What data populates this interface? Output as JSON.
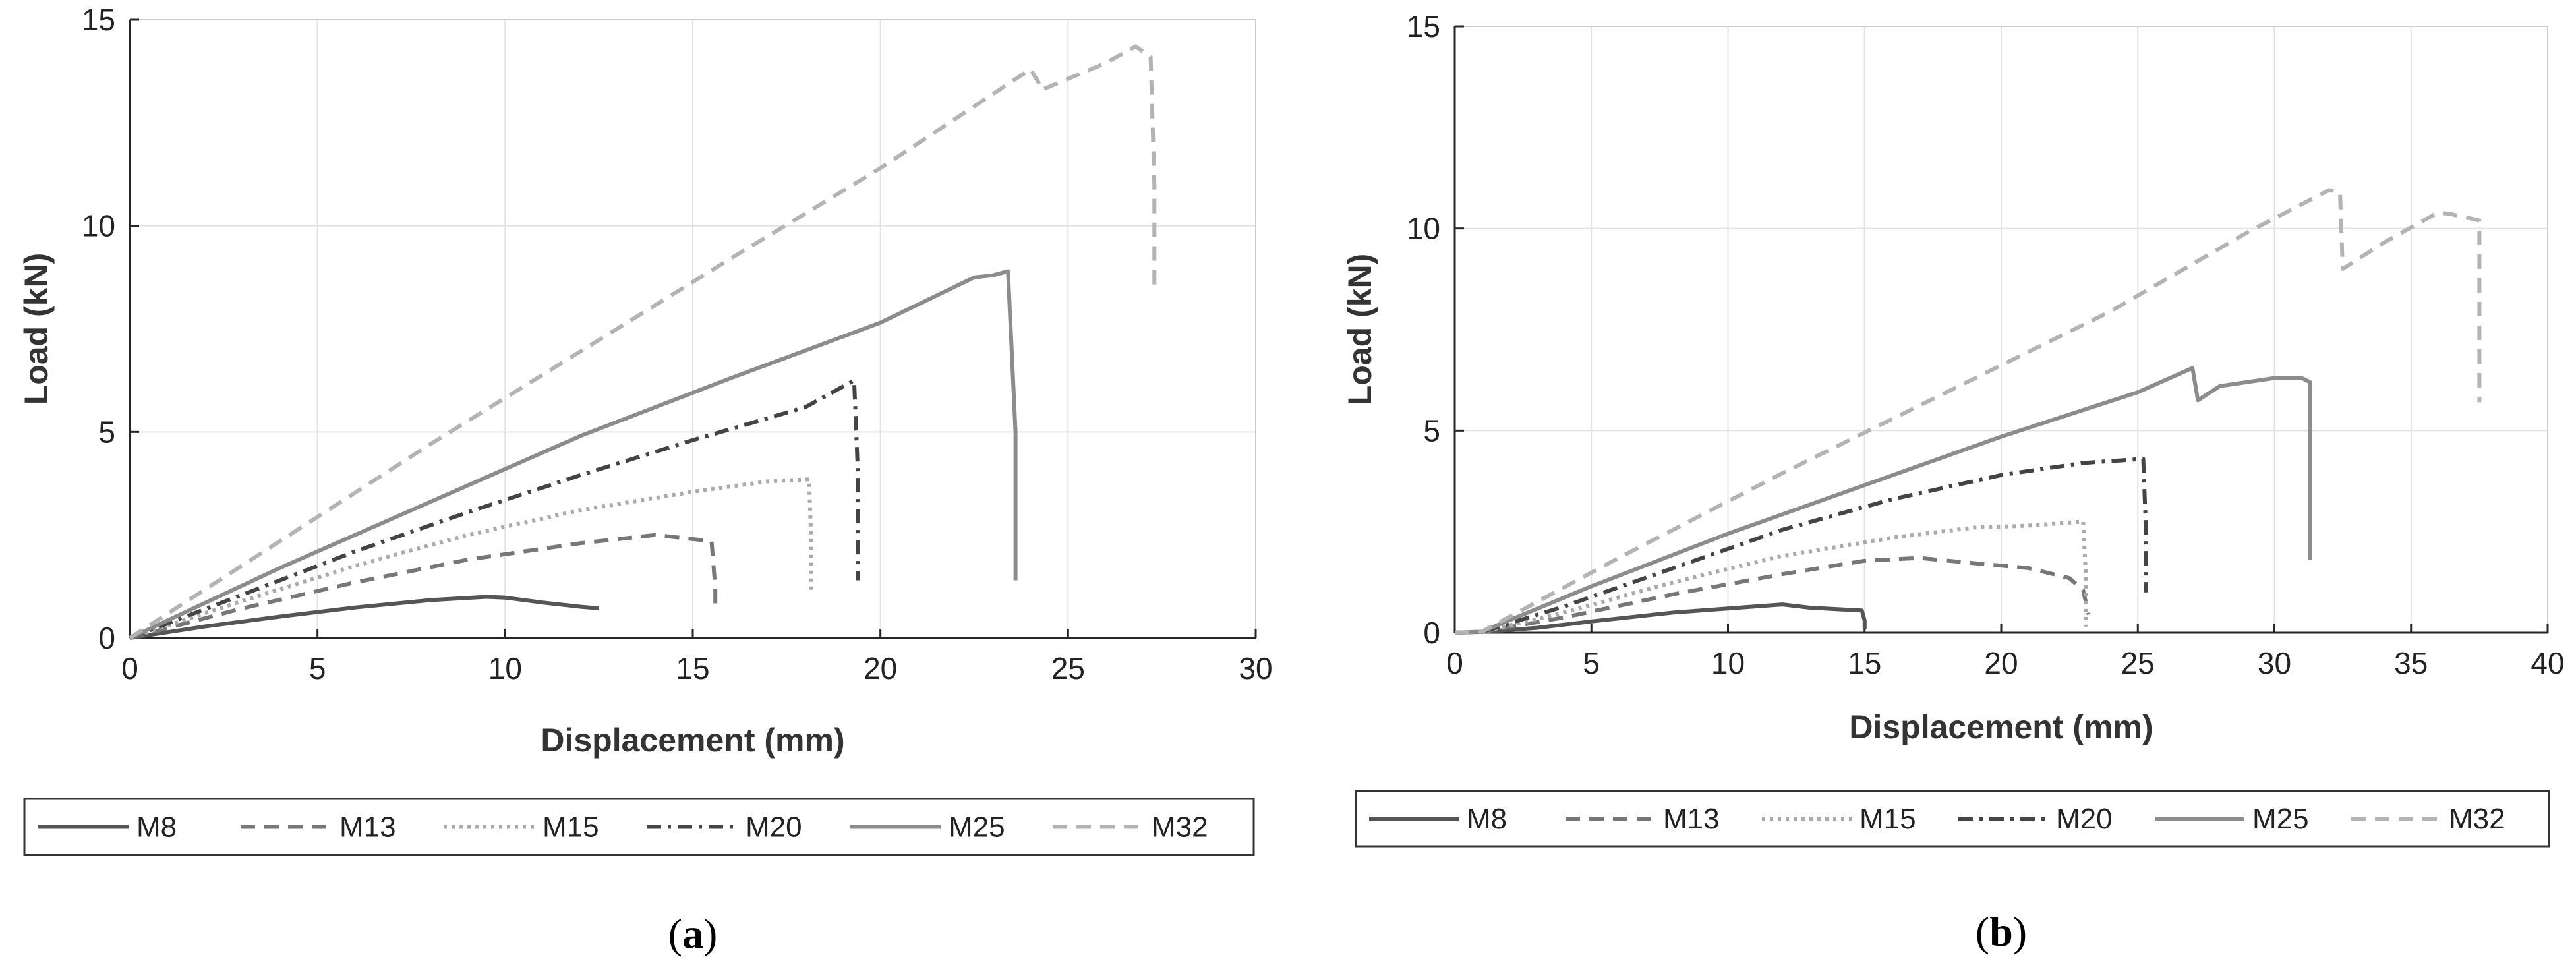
{
  "chart_data": [
    {
      "type": "line",
      "panel_label": "a",
      "xlabel": "Displacement (mm)",
      "ylabel": "Load (kN)",
      "xlim": [
        0,
        30
      ],
      "ylim": [
        0,
        15
      ],
      "xticks": [
        "0",
        "5",
        "10",
        "15",
        "20",
        "25",
        "30"
      ],
      "yticks": [
        "0",
        "5",
        "10",
        "15"
      ],
      "grid": true,
      "legend_position": "bottom",
      "series": [
        {
          "name": "M8",
          "style": "solid",
          "color": "#555555",
          "x": [
            0,
            2,
            4,
            6,
            8,
            9.5,
            10,
            11,
            12,
            12.5
          ],
          "y": [
            0,
            0.28,
            0.52,
            0.74,
            0.92,
            1.0,
            0.98,
            0.86,
            0.76,
            0.72
          ]
        },
        {
          "name": "M13",
          "style": "dashed",
          "color": "#777777",
          "x": [
            0,
            3,
            6,
            9,
            12,
            14,
            15.5,
            15.6,
            15.6
          ],
          "y": [
            0,
            0.72,
            1.35,
            1.9,
            2.3,
            2.5,
            2.35,
            1.2,
            0.65
          ]
        },
        {
          "name": "M15",
          "style": "dotted",
          "color": "#aaaaaa",
          "x": [
            0,
            3,
            6,
            9,
            12,
            15,
            17,
            18.1,
            18.15,
            18.15
          ],
          "y": [
            0,
            0.9,
            1.75,
            2.5,
            3.1,
            3.55,
            3.8,
            3.85,
            2.5,
            1.1
          ]
        },
        {
          "name": "M20",
          "style": "dashdot",
          "color": "#444444",
          "x": [
            0,
            3,
            6,
            9,
            12,
            15,
            18,
            19.3,
            19.4,
            19.4
          ],
          "y": [
            0,
            1.05,
            2.1,
            3.05,
            3.95,
            4.8,
            5.6,
            6.25,
            4.0,
            1.4
          ]
        },
        {
          "name": "M25",
          "style": "solid",
          "color": "#8c8c8c",
          "x": [
            0,
            4,
            8,
            12,
            16,
            20,
            22.5,
            23,
            23.4,
            23.6,
            23.6
          ],
          "y": [
            0,
            1.7,
            3.3,
            4.9,
            6.3,
            7.65,
            8.75,
            8.8,
            8.9,
            5.0,
            1.4
          ]
        },
        {
          "name": "M32",
          "style": "dashed",
          "color": "#b3b3b3",
          "x": [
            0,
            4,
            8,
            12,
            16,
            20,
            24,
            24.2,
            24.3,
            26,
            26.8,
            27.2,
            27.3,
            27.3
          ],
          "y": [
            0,
            2.35,
            4.7,
            6.95,
            9.2,
            11.4,
            13.8,
            13.5,
            13.3,
            13.95,
            14.35,
            14.1,
            11.0,
            8.4
          ]
        }
      ]
    },
    {
      "type": "line",
      "panel_label": "b",
      "xlabel": "Displacement (mm)",
      "ylabel": "Load (kN)",
      "xlim": [
        0,
        40
      ],
      "ylim": [
        0,
        15
      ],
      "xticks": [
        "0",
        "5",
        "10",
        "15",
        "20",
        "25",
        "30",
        "35",
        "40"
      ],
      "yticks": [
        "0",
        "5",
        "10",
        "15"
      ],
      "grid": true,
      "legend_position": "bottom",
      "series": [
        {
          "name": "M8",
          "style": "solid",
          "color": "#555555",
          "x": [
            0,
            1,
            3,
            5,
            8,
            11,
            12,
            13,
            14.9,
            15,
            15
          ],
          "y": [
            0,
            0.02,
            0.12,
            0.28,
            0.5,
            0.65,
            0.7,
            0.62,
            0.55,
            0.3,
            0.08
          ]
        },
        {
          "name": "M13",
          "style": "dashed",
          "color": "#777777",
          "x": [
            0,
            1,
            4,
            8,
            12,
            15,
            17,
            19,
            21,
            22.5,
            23,
            23.2
          ],
          "y": [
            0,
            0.02,
            0.38,
            0.95,
            1.45,
            1.78,
            1.85,
            1.72,
            1.6,
            1.35,
            1.05,
            0.45
          ]
        },
        {
          "name": "M15",
          "style": "dotted",
          "color": "#aaaaaa",
          "x": [
            0,
            1,
            4,
            8,
            12,
            16,
            19,
            21,
            23,
            23.1,
            23.1
          ],
          "y": [
            0,
            0.02,
            0.5,
            1.25,
            1.9,
            2.35,
            2.6,
            2.65,
            2.75,
            1.4,
            0.15
          ]
        },
        {
          "name": "M20",
          "style": "dashdot",
          "color": "#444444",
          "x": [
            0,
            1,
            4,
            8,
            12,
            16,
            20,
            23,
            25.2,
            25.3,
            25.3
          ],
          "y": [
            0,
            0.02,
            0.65,
            1.6,
            2.55,
            3.3,
            3.9,
            4.2,
            4.3,
            2.5,
            1.0
          ]
        },
        {
          "name": "M25",
          "style": "solid",
          "color": "#8c8c8c",
          "x": [
            0,
            1,
            5,
            10,
            15,
            20,
            25,
            27,
            27.2,
            28,
            29,
            30,
            31,
            31.3,
            31.3
          ],
          "y": [
            0,
            0.03,
            1.15,
            2.45,
            3.65,
            4.85,
            5.95,
            6.55,
            5.75,
            6.1,
            6.2,
            6.3,
            6.3,
            6.2,
            1.8
          ]
        },
        {
          "name": "M32",
          "style": "dashed",
          "color": "#b3b3b3",
          "x": [
            0,
            1,
            6,
            12,
            18,
            24,
            29,
            32,
            32.4,
            32.5,
            34,
            36,
            36.5,
            37.5,
            37.5
          ],
          "y": [
            0,
            0.03,
            1.85,
            3.95,
            5.95,
            7.95,
            9.9,
            10.95,
            10.9,
            9.0,
            9.65,
            10.4,
            10.35,
            10.2,
            5.7
          ]
        }
      ]
    }
  ]
}
